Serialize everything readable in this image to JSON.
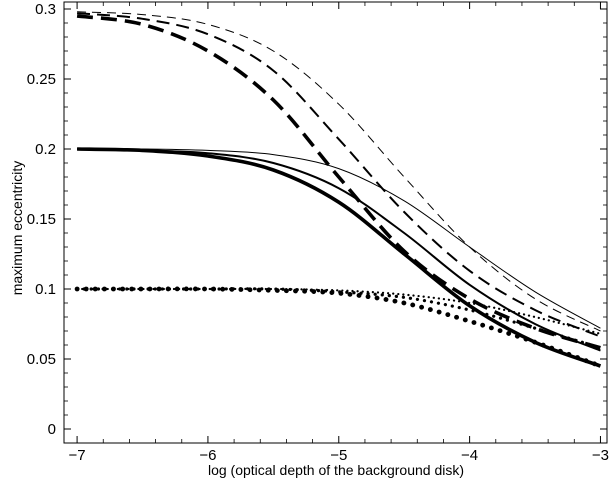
{
  "chart_data": {
    "type": "line",
    "title": "",
    "xlabel": "log (optical depth  of   the background disk)",
    "ylabel": "maximum eccentricity",
    "xlim": [
      -7.1,
      -2.95
    ],
    "ylim": [
      -0.01,
      0.305
    ],
    "xticks": [
      -7,
      -6,
      -5,
      -4,
      -3
    ],
    "xtick_labels": [
      "−7",
      "−6",
      "−5",
      "−4",
      "−3"
    ],
    "yticks": [
      0,
      0.05,
      0.1,
      0.15,
      0.2,
      0.25,
      0.3
    ],
    "ytick_labels": [
      "0",
      "0.05",
      "0.1",
      "0.15",
      "0.2",
      "0.25",
      "0.3"
    ],
    "grid": false,
    "legend": "none",
    "series": [
      {
        "style": "dashed",
        "weight": "thin",
        "x": [
          -7,
          -6.5,
          -6,
          -5.5,
          -5,
          -4.5,
          -4,
          -3.5,
          -3
        ],
        "y": [
          0.298,
          0.296,
          0.289,
          0.27,
          0.232,
          0.18,
          0.13,
          0.093,
          0.07
        ]
      },
      {
        "style": "dashed",
        "weight": "medium",
        "x": [
          -7,
          -6.5,
          -6,
          -5.5,
          -5,
          -4.5,
          -4,
          -3.5,
          -3
        ],
        "y": [
          0.297,
          0.293,
          0.282,
          0.256,
          0.207,
          0.155,
          0.113,
          0.085,
          0.066
        ]
      },
      {
        "style": "dashed",
        "weight": "thick",
        "x": [
          -7,
          -6.5,
          -6,
          -5.5,
          -5,
          -4.5,
          -4,
          -3.5,
          -3
        ],
        "y": [
          0.295,
          0.289,
          0.27,
          0.235,
          0.18,
          0.127,
          0.093,
          0.072,
          0.058
        ]
      },
      {
        "style": "solid",
        "weight": "thin",
        "x": [
          -7,
          -6.5,
          -6,
          -5.5,
          -5,
          -4.5,
          -4,
          -3.5,
          -3
        ],
        "y": [
          0.2,
          0.2,
          0.199,
          0.196,
          0.186,
          0.163,
          0.13,
          0.098,
          0.072
        ]
      },
      {
        "style": "solid",
        "weight": "medium",
        "x": [
          -7,
          -6.5,
          -6,
          -5.5,
          -5,
          -4.5,
          -4,
          -3.5,
          -3
        ],
        "y": [
          0.2,
          0.199,
          0.197,
          0.19,
          0.172,
          0.14,
          0.103,
          0.075,
          0.056
        ]
      },
      {
        "style": "solid",
        "weight": "thick",
        "x": [
          -7,
          -6.5,
          -6,
          -5.5,
          -5,
          -4.5,
          -4,
          -3.5,
          -3
        ],
        "y": [
          0.2,
          0.199,
          0.195,
          0.185,
          0.162,
          0.125,
          0.088,
          0.062,
          0.045
        ]
      },
      {
        "style": "dotted",
        "weight": "thin",
        "x": [
          -7,
          -6.5,
          -6,
          -5.5,
          -5,
          -4.5,
          -4,
          -3.5,
          -3
        ],
        "y": [
          0.1,
          0.1,
          0.1,
          0.1,
          0.099,
          0.096,
          0.09,
          0.08,
          0.068
        ]
      },
      {
        "style": "dotted",
        "weight": "medium",
        "x": [
          -7,
          -6.5,
          -6,
          -5.5,
          -5,
          -4.5,
          -4,
          -3.5,
          -3
        ],
        "y": [
          0.1,
          0.1,
          0.1,
          0.1,
          0.098,
          0.094,
          0.085,
          0.072,
          0.058
        ]
      },
      {
        "style": "dotted",
        "weight": "thick",
        "x": [
          -7,
          -6.5,
          -6,
          -5.5,
          -5,
          -4.5,
          -4,
          -3.5,
          -3
        ],
        "y": [
          0.1,
          0.1,
          0.1,
          0.099,
          0.097,
          0.09,
          0.077,
          0.062,
          0.045
        ]
      }
    ]
  }
}
